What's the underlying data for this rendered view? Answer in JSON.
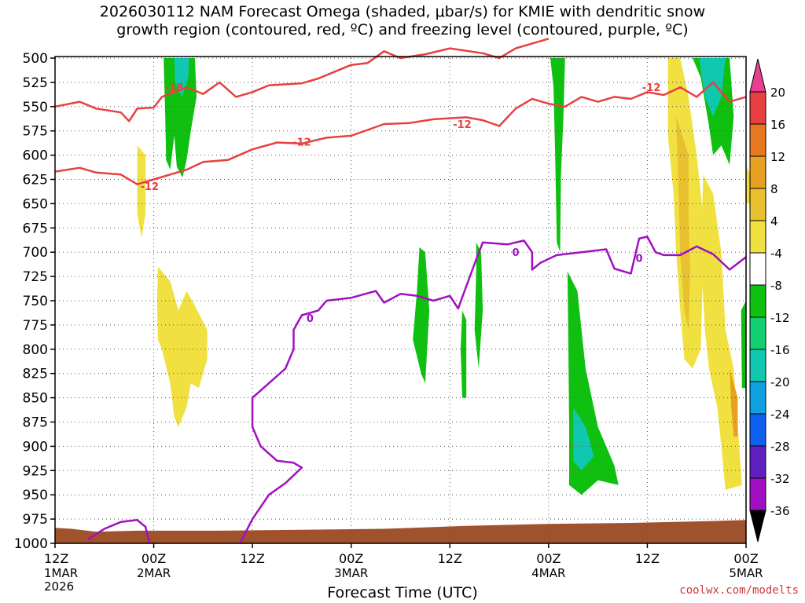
{
  "title_line1": "2026030112 NAM Forecast Omega (shaded, μbar/s) for KMIE with dendritic snow",
  "title_line2": "growth region (contoured, red, ºC) and freezing level (contoured, purple, ºC)",
  "credit": "coolwx.com/modelts",
  "chart_data": {
    "type": "time-height contour",
    "xlabel": "Forecast Time (UTC)",
    "ylabel": "",
    "x_range_hours": [
      0,
      84
    ],
    "y_range_mb": [
      1000,
      500
    ],
    "y_ticks": [
      500,
      525,
      550,
      575,
      600,
      625,
      650,
      675,
      700,
      725,
      750,
      775,
      800,
      825,
      850,
      875,
      900,
      925,
      950,
      975,
      1000
    ],
    "x_ticks": [
      {
        "h": 0,
        "l1": "12Z",
        "l2": "1MAR",
        "l3": "2026"
      },
      {
        "h": 12,
        "l1": "00Z",
        "l2": "2MAR",
        "l3": ""
      },
      {
        "h": 24,
        "l1": "12Z",
        "l2": "",
        "l3": ""
      },
      {
        "h": 36,
        "l1": "00Z",
        "l2": "3MAR",
        "l3": ""
      },
      {
        "h": 48,
        "l1": "12Z",
        "l2": "",
        "l3": ""
      },
      {
        "h": 60,
        "l1": "00Z",
        "l2": "4MAR",
        "l3": ""
      },
      {
        "h": 72,
        "l1": "12Z",
        "l2": "",
        "l3": ""
      },
      {
        "h": 84,
        "l1": "00Z",
        "l2": "5MAR",
        "l3": ""
      }
    ],
    "grid": true,
    "colorbar": {
      "labels": [
        "20",
        "16",
        "12",
        "8",
        "4",
        "-4",
        "-8",
        "-12",
        "-16",
        "-20",
        "-24",
        "-28",
        "-32",
        "-36"
      ],
      "colors": [
        "#e8e8e8",
        "#ffffff",
        "#f0e040",
        "#e8c030",
        "#e8a020",
        "#e87820",
        "#e84040",
        "#e84090",
        "#ffffff",
        "#10c010",
        "#10d070",
        "#10c8b0",
        "#10a0e0",
        "#1060f0",
        "#1030d0",
        "#6020c0",
        "#a010c0",
        "#a0a0a0"
      ]
    },
    "contour_labels": [
      {
        "text": "-18",
        "h": 14.5,
        "p": 530
      },
      {
        "text": "-12",
        "h": 11.5,
        "p": 632
      },
      {
        "text": "-12",
        "h": 30,
        "p": 586
      },
      {
        "text": "-12",
        "h": 49.5,
        "p": 568
      },
      {
        "text": "-12",
        "h": 72.5,
        "p": 530
      },
      {
        "text": "0",
        "h": 31,
        "p": 768
      },
      {
        "text": "0",
        "h": 56,
        "p": 700
      },
      {
        "text": "0",
        "h": 71,
        "p": 706
      }
    ],
    "series": [
      {
        "name": "",
        "color": "#e84040",
        "kind": "isotherm",
        "points": [
          [
            0,
            550
          ],
          [
            3,
            545
          ],
          [
            5,
            552
          ],
          [
            8,
            556
          ],
          [
            9,
            565
          ],
          [
            10,
            552
          ],
          [
            12,
            551
          ],
          [
            13,
            540
          ],
          [
            16,
            530
          ],
          [
            18,
            537
          ],
          [
            20,
            525
          ],
          [
            22,
            540
          ],
          [
            24,
            535
          ],
          [
            26,
            528
          ],
          [
            30,
            526
          ],
          [
            32,
            521
          ],
          [
            34,
            514
          ],
          [
            36,
            507
          ],
          [
            38,
            505
          ],
          [
            40,
            493
          ],
          [
            42,
            500
          ],
          [
            45,
            496
          ],
          [
            48,
            490
          ],
          [
            52,
            495
          ],
          [
            54,
            500
          ],
          [
            56,
            490
          ],
          [
            60,
            480
          ]
        ]
      },
      {
        "name": "",
        "color": "#e84040",
        "kind": "isotherm",
        "points": [
          [
            0,
            617
          ],
          [
            3,
            613
          ],
          [
            5,
            618
          ],
          [
            8,
            620
          ],
          [
            10,
            630
          ],
          [
            12,
            625
          ],
          [
            14,
            620
          ],
          [
            16,
            615
          ],
          [
            18,
            607
          ],
          [
            21,
            605
          ],
          [
            24,
            594
          ],
          [
            27,
            587
          ],
          [
            30,
            588
          ],
          [
            33,
            582
          ],
          [
            36,
            580
          ],
          [
            38,
            574
          ],
          [
            40,
            568
          ],
          [
            43,
            567
          ],
          [
            46,
            563
          ],
          [
            50,
            561
          ],
          [
            52,
            564
          ],
          [
            54,
            570
          ],
          [
            56,
            552
          ],
          [
            58,
            542
          ],
          [
            60,
            547
          ],
          [
            62,
            550
          ],
          [
            64,
            540
          ],
          [
            66,
            545
          ],
          [
            68,
            540
          ],
          [
            70,
            542
          ],
          [
            72,
            535
          ],
          [
            74,
            538
          ],
          [
            76,
            530
          ],
          [
            78,
            540
          ],
          [
            80,
            525
          ],
          [
            82,
            545
          ],
          [
            84,
            540
          ]
        ]
      },
      {
        "name": "",
        "color": "#a010c0",
        "kind": "freezing",
        "points": [
          [
            4,
            996
          ],
          [
            6,
            985
          ],
          [
            8,
            978
          ],
          [
            10,
            976
          ],
          [
            11,
            983
          ],
          [
            11.5,
            1000
          ]
        ]
      },
      {
        "name": "",
        "color": "#a010c0",
        "kind": "freezing",
        "points": [
          [
            22.5,
            1000
          ],
          [
            24,
            975
          ],
          [
            26,
            950
          ],
          [
            28,
            938
          ],
          [
            30,
            922
          ],
          [
            29,
            917
          ],
          [
            27,
            915
          ],
          [
            25,
            900
          ],
          [
            24,
            880
          ],
          [
            24,
            850
          ],
          [
            26,
            835
          ],
          [
            28,
            820
          ],
          [
            29,
            800
          ],
          [
            29,
            780
          ],
          [
            30,
            765
          ],
          [
            32,
            760
          ],
          [
            33,
            750
          ],
          [
            35,
            748
          ],
          [
            36,
            747
          ],
          [
            39,
            740
          ],
          [
            40,
            752
          ],
          [
            42,
            743
          ],
          [
            44,
            745
          ],
          [
            46,
            750
          ],
          [
            48,
            745
          ],
          [
            49,
            758
          ],
          [
            50,
            735
          ],
          [
            51,
            712
          ],
          [
            52,
            690
          ],
          [
            55,
            692
          ],
          [
            57,
            688
          ],
          [
            58,
            700
          ],
          [
            58,
            718
          ],
          [
            59,
            711
          ],
          [
            61,
            703
          ],
          [
            64,
            700
          ],
          [
            67,
            697
          ],
          [
            68,
            717
          ],
          [
            70,
            722
          ],
          [
            71,
            686
          ],
          [
            72,
            684
          ],
          [
            73,
            700
          ],
          [
            74,
            703
          ],
          [
            76,
            703
          ],
          [
            78,
            694
          ],
          [
            80,
            702
          ],
          [
            82,
            718
          ],
          [
            84,
            705
          ]
        ]
      }
    ],
    "omega_regions": [
      {
        "band": "-8",
        "color": "#10c010",
        "pts": [
          [
            13.2,
            500
          ],
          [
            17,
            500
          ],
          [
            17.2,
            540
          ],
          [
            16.5,
            575
          ],
          [
            16,
            605
          ],
          [
            15.5,
            623
          ],
          [
            14.8,
            612
          ],
          [
            14.5,
            580
          ],
          [
            14,
            615
          ],
          [
            13.5,
            605
          ],
          [
            13.4,
            560
          ]
        ]
      },
      {
        "band": "-12",
        "color": "#10c8b0",
        "pts": [
          [
            14.5,
            500
          ],
          [
            16.3,
            500
          ],
          [
            16.2,
            520
          ],
          [
            15.4,
            540
          ],
          [
            14.6,
            525
          ]
        ]
      },
      {
        "band": "-8",
        "color": "#10c010",
        "pts": [
          [
            60.2,
            500
          ],
          [
            62,
            500
          ],
          [
            61.8,
            560
          ],
          [
            61.5,
            620
          ],
          [
            61.4,
            700
          ],
          [
            61,
            690
          ],
          [
            60.8,
            600
          ],
          [
            60.6,
            530
          ]
        ]
      },
      {
        "band": "-8",
        "color": "#10c010",
        "pts": [
          [
            62.3,
            720
          ],
          [
            63.5,
            740
          ],
          [
            64.5,
            820
          ],
          [
            66,
            880
          ],
          [
            68,
            920
          ],
          [
            68.5,
            940
          ],
          [
            66,
            935
          ],
          [
            64,
            950
          ],
          [
            62.5,
            940
          ],
          [
            62.5,
            880
          ],
          [
            62.4,
            800
          ]
        ]
      },
      {
        "band": "-12",
        "color": "#10c8b0",
        "pts": [
          [
            63,
            860
          ],
          [
            64.5,
            880
          ],
          [
            65.5,
            910
          ],
          [
            64,
            925
          ],
          [
            63,
            915
          ]
        ]
      },
      {
        "band": "-8",
        "color": "#10c010",
        "pts": [
          [
            44.3,
            695
          ],
          [
            45,
            700
          ],
          [
            45.5,
            760
          ],
          [
            45,
            835
          ],
          [
            44.5,
            825
          ],
          [
            43.5,
            790
          ],
          [
            44,
            740
          ]
        ]
      },
      {
        "band": "-8",
        "color": "#10c010",
        "pts": [
          [
            51.2,
            690
          ],
          [
            51.8,
            700
          ],
          [
            52,
            760
          ],
          [
            51.5,
            820
          ],
          [
            51,
            780
          ],
          [
            51.2,
            720
          ]
        ]
      },
      {
        "band": "-8",
        "color": "#10c010",
        "pts": [
          [
            49.5,
            760
          ],
          [
            50,
            770
          ],
          [
            50,
            850
          ],
          [
            49.5,
            850
          ],
          [
            49.3,
            800
          ]
        ]
      },
      {
        "band": "-8",
        "color": "#10c010",
        "pts": [
          [
            77.5,
            500
          ],
          [
            82,
            500
          ],
          [
            82.5,
            560
          ],
          [
            82,
            610
          ],
          [
            81,
            590
          ],
          [
            80,
            600
          ],
          [
            79.5,
            570
          ],
          [
            78.5,
            520
          ]
        ]
      },
      {
        "band": "-12",
        "color": "#10c8b0",
        "pts": [
          [
            78.3,
            500
          ],
          [
            81.5,
            500
          ],
          [
            81,
            540
          ],
          [
            80,
            560
          ],
          [
            79,
            540
          ]
        ]
      },
      {
        "band": "-8",
        "color": "#10c010",
        "pts": [
          [
            83.4,
            760
          ],
          [
            84,
            750
          ],
          [
            84,
            840
          ],
          [
            83.5,
            840
          ]
        ]
      },
      {
        "band": "4",
        "color": "#f0e040",
        "pts": [
          [
            10,
            590
          ],
          [
            11,
            600
          ],
          [
            11,
            660
          ],
          [
            10.5,
            685
          ],
          [
            10,
            660
          ]
        ]
      },
      {
        "band": "4",
        "color": "#f0e040",
        "pts": [
          [
            12.5,
            715
          ],
          [
            14,
            730
          ],
          [
            15,
            760
          ],
          [
            16,
            740
          ],
          [
            17,
            755
          ],
          [
            18.5,
            780
          ],
          [
            18.5,
            810
          ],
          [
            17.5,
            840
          ],
          [
            16.5,
            835
          ],
          [
            16,
            860
          ],
          [
            15,
            880
          ],
          [
            14.5,
            870
          ],
          [
            14,
            835
          ],
          [
            13,
            800
          ],
          [
            12.5,
            790
          ],
          [
            12.4,
            750
          ]
        ]
      },
      {
        "band": "4",
        "color": "#f0e040",
        "pts": [
          [
            74.5,
            500
          ],
          [
            76,
            500
          ],
          [
            77,
            540
          ],
          [
            78,
            600
          ],
          [
            79,
            680
          ],
          [
            78.7,
            740
          ],
          [
            78.5,
            800
          ],
          [
            77.5,
            820
          ],
          [
            76.5,
            810
          ],
          [
            76,
            760
          ],
          [
            75.5,
            700
          ],
          [
            75.2,
            640
          ],
          [
            74.5,
            580
          ]
        ]
      },
      {
        "band": "4",
        "color": "#f0e040",
        "pts": [
          [
            78.8,
            620
          ],
          [
            80,
            640
          ],
          [
            81,
            700
          ],
          [
            81.5,
            780
          ],
          [
            82.5,
            820
          ],
          [
            83,
            880
          ],
          [
            83.5,
            940
          ],
          [
            81.5,
            945
          ],
          [
            81,
            900
          ],
          [
            80.5,
            860
          ],
          [
            79.5,
            820
          ],
          [
            79,
            780
          ],
          [
            78.5,
            700
          ]
        ]
      },
      {
        "band": "8",
        "color": "#e8c030",
        "pts": [
          [
            75.5,
            560
          ],
          [
            77,
            600
          ],
          [
            77,
            660
          ],
          [
            77.2,
            720
          ],
          [
            77,
            780
          ],
          [
            76.5,
            760
          ],
          [
            76,
            700
          ],
          [
            75.8,
            640
          ]
        ]
      },
      {
        "band": "12",
        "color": "#e8a020",
        "pts": [
          [
            82,
            820
          ],
          [
            83,
            850
          ],
          [
            83,
            890
          ],
          [
            82.5,
            890
          ],
          [
            82.2,
            860
          ]
        ]
      },
      {
        "band": "4",
        "color": "#f0e040",
        "pts": [
          [
            84,
            610
          ],
          [
            84.5,
            620
          ],
          [
            84.5,
            650
          ],
          [
            84,
            650
          ]
        ]
      }
    ],
    "terrain_color": "#a0522d"
  }
}
